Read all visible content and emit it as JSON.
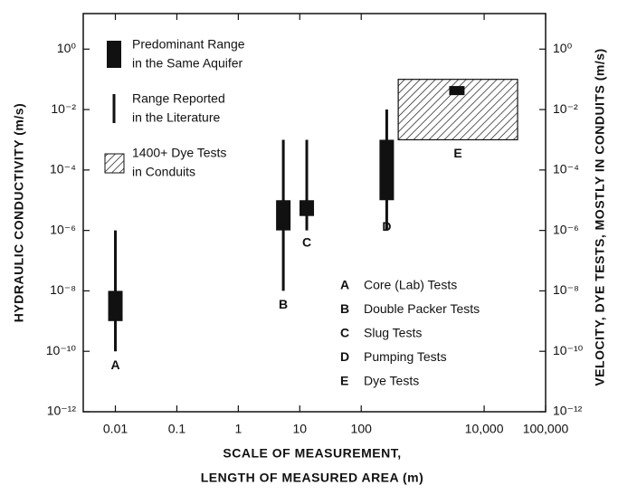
{
  "chart_data": {
    "type": "range",
    "ylabel": "HYDRAULIC CONDUCTIVITY (m/s)",
    "y2label": "VELOCITY, DYE TESTS, MOSTLY IN CONDUITS (m/s)",
    "xlabel": [
      "SCALE OF MEASUREMENT,",
      "LENGTH OF MEASURED AREA (m)"
    ],
    "xscale": "log",
    "yscale": "log",
    "xlim": [
      0.003,
      100000
    ],
    "ylim": [
      1e-12,
      15
    ],
    "y2lim": [
      1e-12,
      15
    ],
    "xticks": [
      0.01,
      0.1,
      1,
      10,
      100,
      {
        "value": 10000,
        "label": "10,000"
      },
      {
        "value": 100000,
        "label": "100,000"
      }
    ],
    "yticks": [
      {
        "value": 1,
        "label": "10⁰"
      },
      {
        "value": 0.01,
        "label": "10⁻²"
      },
      {
        "value": 0.0001,
        "label": "10⁻⁴"
      },
      {
        "value": 1e-06,
        "label": "10⁻⁶"
      },
      {
        "value": 1e-08,
        "label": "10⁻⁸"
      },
      {
        "value": 1e-10,
        "label": "10⁻¹⁰"
      },
      {
        "value": 1e-12,
        "label": "10⁻¹²"
      }
    ],
    "y2ticks": [
      {
        "value": 1,
        "label": "10⁰"
      },
      {
        "value": 0.01,
        "label": "10⁻²"
      },
      {
        "value": 0.0001,
        "label": "10⁻⁴"
      },
      {
        "value": 1e-06,
        "label": "10⁻⁶"
      },
      {
        "value": 1e-08,
        "label": "10⁻⁸"
      },
      {
        "value": 1e-10,
        "label": "10⁻¹⁰"
      },
      {
        "value": 1e-12,
        "label": "10⁻¹²"
      }
    ],
    "legend": [
      {
        "kind": "predominant",
        "lines": [
          "Predominant Range",
          "in the Same Aquifer"
        ]
      },
      {
        "kind": "literature",
        "lines": [
          "Range Reported",
          "in the Literature"
        ]
      },
      {
        "kind": "dye",
        "lines": [
          "1400+ Dye Tests",
          "in Conduits"
        ]
      }
    ],
    "series": [
      {
        "letter": "A",
        "name": "Core (Lab) Tests",
        "x": 0.01,
        "literature": [
          1e-10,
          1e-06
        ],
        "predominant": [
          1e-09,
          1e-08
        ]
      },
      {
        "letter": "B",
        "name": "Double Packer Tests",
        "x": 5.4,
        "literature": [
          1e-08,
          0.001
        ],
        "predominant": [
          1e-06,
          1e-05
        ]
      },
      {
        "letter": "C",
        "name": "Slug Tests",
        "x": 13,
        "literature": [
          1e-06,
          0.001
        ],
        "predominant": [
          3e-06,
          1e-05
        ]
      },
      {
        "letter": "D",
        "name": "Pumping Tests",
        "x": 260,
        "literature": [
          1e-06,
          0.01
        ],
        "predominant": [
          1e-05,
          0.001
        ]
      },
      {
        "letter": "E",
        "name": "Dye Tests",
        "xrange": [
          400,
          35000
        ],
        "dye_tests": [
          0.001,
          0.1
        ],
        "predominant_x": [
          2700,
          4800
        ],
        "predominant": [
          0.03,
          0.06
        ]
      }
    ]
  }
}
